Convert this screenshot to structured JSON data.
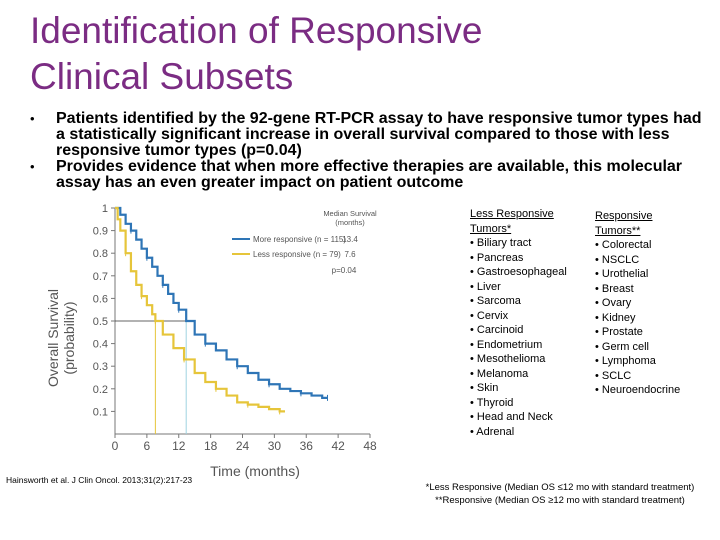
{
  "title_line1": "Identification of Responsive",
  "title_line2": "Clinical Subsets",
  "bullets": [
    "Patients identified by the 92-gene RT-PCR assay to have responsive tumor types had a statistically significant increase in overall survival compared to those with less responsive tumor types (p=0.04)",
    "Provides evidence that when more effective therapies are available, this molecular assay has an even greater impact on patient outcome"
  ],
  "bullet_marker": "•",
  "citation": "Hainsworth et al. J Clin Oncol. 2013;31(2):217-23",
  "less_responsive": {
    "header_line1": "Less Responsive",
    "header_line2": "Tumors*",
    "items": [
      "• Biliary tract",
      "• Pancreas",
      "• Gastroesophageal",
      "• Liver",
      "• Sarcoma",
      "• Cervix",
      "• Carcinoid",
      "• Endometrium",
      "• Mesothelioma",
      "• Melanoma",
      "• Skin",
      "• Thyroid",
      "• Head and Neck",
      "• Adrenal"
    ]
  },
  "responsive": {
    "header_line1": "Responsive",
    "header_line2": "Tumors**",
    "items": [
      "• Colorectal",
      "• NSCLC",
      "• Urothelial",
      "• Breast",
      "• Ovary",
      "• Kidney",
      "• Prostate",
      "• Germ cell",
      "• Lymphoma",
      "• SCLC",
      "• Neuroendocrine"
    ]
  },
  "footnote_line1": "*Less Responsive (Median OS ≤12 mo with standard treatment)",
  "footnote_line2": "**Responsive (Median OS ≥12 mo with standard treatment)",
  "chart_data": {
    "type": "line",
    "xlabel": "Time (months)",
    "ylabel_line1": "Overall Survival",
    "ylabel_line2": "(probability)",
    "xlim": [
      0,
      48
    ],
    "ylim": [
      0,
      1.0
    ],
    "x_ticks": [
      0,
      6,
      12,
      18,
      24,
      30,
      36,
      42,
      48
    ],
    "y_ticks": [
      0.1,
      0.2,
      0.3,
      0.4,
      0.5,
      0.6,
      0.7,
      0.8,
      0.9,
      1.0
    ],
    "legend_header_line1": "Median Survival",
    "legend_header_line2": "(months)",
    "p_value": "p=0.04",
    "colors": {
      "more": "#2e75b6",
      "less": "#e6c53a",
      "median_more": "#9fd3e0",
      "median_less": "#e6c53a"
    },
    "series": [
      {
        "name": "More responsive (n = 115)",
        "median": "13.4",
        "median_value": 13.4,
        "points": [
          [
            0,
            1.0
          ],
          [
            1,
            0.97
          ],
          [
            2,
            0.93
          ],
          [
            3,
            0.9
          ],
          [
            4,
            0.86
          ],
          [
            5,
            0.82
          ],
          [
            6,
            0.78
          ],
          [
            7,
            0.74
          ],
          [
            8,
            0.7
          ],
          [
            9,
            0.66
          ],
          [
            10,
            0.62
          ],
          [
            11,
            0.58
          ],
          [
            12,
            0.55
          ],
          [
            13.4,
            0.5
          ],
          [
            15,
            0.44
          ],
          [
            17,
            0.4
          ],
          [
            19,
            0.37
          ],
          [
            21,
            0.33
          ],
          [
            23,
            0.3
          ],
          [
            25,
            0.27
          ],
          [
            27,
            0.24
          ],
          [
            29,
            0.22
          ],
          [
            31,
            0.2
          ],
          [
            33,
            0.19
          ],
          [
            35,
            0.18
          ],
          [
            37,
            0.17
          ],
          [
            39,
            0.16
          ],
          [
            40,
            0.16
          ]
        ]
      },
      {
        "name": "Less responsive (n = 79)",
        "median": "7.6",
        "median_value": 7.6,
        "points": [
          [
            0,
            1.0
          ],
          [
            0.5,
            0.95
          ],
          [
            1,
            0.9
          ],
          [
            2,
            0.8
          ],
          [
            3,
            0.72
          ],
          [
            4,
            0.66
          ],
          [
            5,
            0.61
          ],
          [
            6,
            0.57
          ],
          [
            7,
            0.53
          ],
          [
            7.6,
            0.5
          ],
          [
            9,
            0.44
          ],
          [
            11,
            0.38
          ],
          [
            13,
            0.33
          ],
          [
            15,
            0.27
          ],
          [
            17,
            0.23
          ],
          [
            19,
            0.2
          ],
          [
            21,
            0.17
          ],
          [
            23,
            0.14
          ],
          [
            25,
            0.13
          ],
          [
            27,
            0.12
          ],
          [
            29,
            0.11
          ],
          [
            31,
            0.1
          ],
          [
            32,
            0.1
          ]
        ]
      }
    ]
  }
}
